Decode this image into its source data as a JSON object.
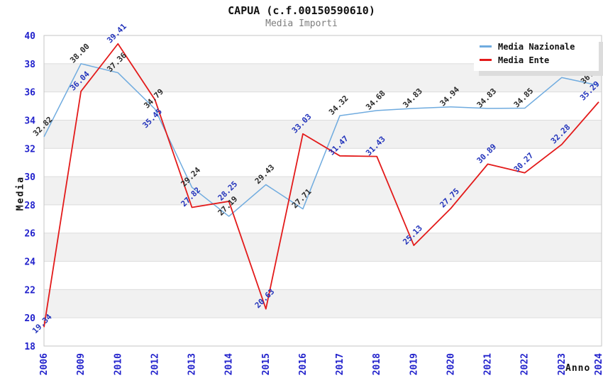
{
  "chart_data": {
    "type": "line",
    "title": "CAPUA (c.f.00150590610)",
    "subtitle": "Media Importi",
    "xlabel": "Anno",
    "ylabel": "Media",
    "ylim": [
      18,
      40
    ],
    "ytick_step": 2,
    "grid": true,
    "legend_position": "top-right",
    "band_ranges": [
      [
        20,
        22
      ],
      [
        24,
        26
      ],
      [
        28,
        30
      ],
      [
        32,
        34
      ],
      [
        36,
        38
      ]
    ],
    "categories": [
      "2006",
      "2009",
      "2010",
      "2012",
      "2013",
      "2014",
      "2015",
      "2016",
      "2017",
      "2018",
      "2019",
      "2020",
      "2021",
      "2022",
      "2023",
      "2024"
    ],
    "series": [
      {
        "name": "Media Nazionale",
        "color": "#6FABDF",
        "label_color": "#2a2a2a",
        "values": [
          32.82,
          38.0,
          37.36,
          34.79,
          29.24,
          27.19,
          29.43,
          27.71,
          34.32,
          34.68,
          34.83,
          34.94,
          34.83,
          34.85,
          37.02,
          36.46
        ],
        "hidden_label_indexes": [
          14
        ],
        "label_offsets": {
          "15": [
            -12,
            -16
          ]
        }
      },
      {
        "name": "Media Ente",
        "color": "#E31A1A",
        "label_color": "#2233BB",
        "values": [
          19.34,
          36.04,
          39.41,
          35.45,
          27.82,
          28.25,
          20.63,
          33.03,
          31.47,
          31.43,
          25.13,
          27.75,
          30.89,
          30.27,
          32.28,
          35.29
        ],
        "hidden_label_indexes": [],
        "label_offsets": {
          "0": [
            -3,
            -5
          ],
          "3": [
            -4,
            26
          ],
          "15": [
            -13,
            -16
          ]
        }
      }
    ],
    "colors": {
      "band": "#f1f1f1",
      "grid": "#dcdcdc",
      "border": "#c6c6c6",
      "tick_text": "#2222CC"
    }
  }
}
